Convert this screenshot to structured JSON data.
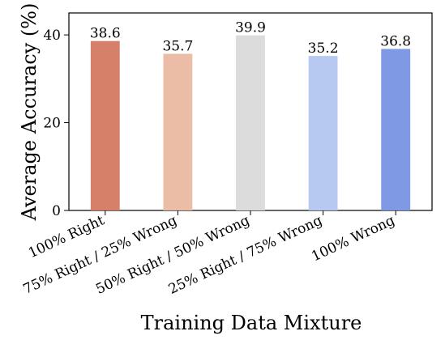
{
  "chart_data": {
    "type": "bar",
    "categories": [
      "100% Right",
      "75% Right / 25% Wrong",
      "50% Right / 50% Wrong",
      "25% Right / 75% Wrong",
      "100% Wrong"
    ],
    "values": [
      38.6,
      35.7,
      39.9,
      35.2,
      36.8
    ],
    "data_labels": [
      "38.6",
      "35.7",
      "39.9",
      "35.2",
      "36.8"
    ],
    "bar_colors": [
      "#d6806a",
      "#ecbda6",
      "#dcdcdc",
      "#b7c9f0",
      "#7f99e4"
    ],
    "title": "",
    "xlabel": "Training Data Mixture",
    "ylabel": "Average Accuracy (%)",
    "ylim": [
      0,
      45
    ],
    "yticks": [
      0,
      20,
      40
    ],
    "ytick_labels": [
      "0",
      "20",
      "40"
    ],
    "grid": false,
    "legend": "none"
  }
}
